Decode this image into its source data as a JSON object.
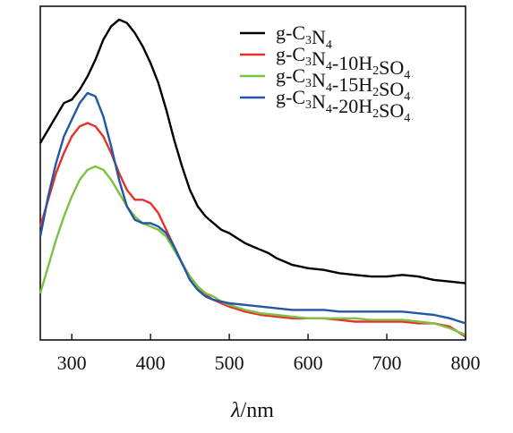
{
  "chart_data": {
    "type": "line",
    "xlabel": "λ/nm",
    "xlim": [
      260,
      800
    ],
    "ylim": [
      0,
      100
    ],
    "x_ticks": [
      "300",
      "400",
      "500",
      "600",
      "700",
      "800"
    ],
    "legend_position": "top-right",
    "series": [
      {
        "name": "g-C3N4",
        "color": "#000000",
        "points": [
          [
            260,
            59
          ],
          [
            270,
            63
          ],
          [
            280,
            67
          ],
          [
            290,
            71
          ],
          [
            300,
            72
          ],
          [
            310,
            75
          ],
          [
            320,
            79
          ],
          [
            330,
            84
          ],
          [
            340,
            90
          ],
          [
            350,
            94
          ],
          [
            360,
            96
          ],
          [
            370,
            95
          ],
          [
            380,
            92
          ],
          [
            390,
            88
          ],
          [
            400,
            83
          ],
          [
            410,
            77
          ],
          [
            420,
            69
          ],
          [
            430,
            60
          ],
          [
            440,
            52
          ],
          [
            450,
            45
          ],
          [
            460,
            40
          ],
          [
            470,
            37
          ],
          [
            480,
            35
          ],
          [
            490,
            33
          ],
          [
            500,
            32
          ],
          [
            510,
            30.5
          ],
          [
            520,
            29
          ],
          [
            530,
            28
          ],
          [
            540,
            27
          ],
          [
            550,
            26
          ],
          [
            560,
            24.5
          ],
          [
            570,
            23.5
          ],
          [
            580,
            22.5
          ],
          [
            590,
            22
          ],
          [
            600,
            21.5
          ],
          [
            620,
            21
          ],
          [
            640,
            20
          ],
          [
            660,
            19.5
          ],
          [
            680,
            19
          ],
          [
            700,
            19
          ],
          [
            720,
            19.5
          ],
          [
            740,
            19
          ],
          [
            760,
            18
          ],
          [
            780,
            17.5
          ],
          [
            800,
            17
          ]
        ]
      },
      {
        "name": "g-C3N4-10H2SO4",
        "color": "#e8302a",
        "points": [
          [
            260,
            34
          ],
          [
            270,
            42
          ],
          [
            280,
            50
          ],
          [
            290,
            56
          ],
          [
            300,
            61
          ],
          [
            310,
            64
          ],
          [
            320,
            65
          ],
          [
            330,
            64
          ],
          [
            340,
            61
          ],
          [
            350,
            56
          ],
          [
            360,
            50
          ],
          [
            370,
            45
          ],
          [
            380,
            42
          ],
          [
            390,
            42
          ],
          [
            400,
            41
          ],
          [
            410,
            38
          ],
          [
            420,
            33
          ],
          [
            430,
            28
          ],
          [
            440,
            23
          ],
          [
            450,
            19
          ],
          [
            460,
            16
          ],
          [
            470,
            13.5
          ],
          [
            480,
            12
          ],
          [
            490,
            11
          ],
          [
            500,
            10
          ],
          [
            520,
            8.5
          ],
          [
            540,
            7.5
          ],
          [
            560,
            7
          ],
          [
            580,
            6.5
          ],
          [
            600,
            6.5
          ],
          [
            620,
            6.5
          ],
          [
            640,
            6
          ],
          [
            660,
            5.5
          ],
          [
            680,
            5.5
          ],
          [
            700,
            5.5
          ],
          [
            720,
            5.5
          ],
          [
            740,
            5
          ],
          [
            760,
            5
          ],
          [
            780,
            4
          ],
          [
            800,
            1
          ]
        ]
      },
      {
        "name": "g-C3N4-15H2SO4",
        "color": "#7cc242",
        "points": [
          [
            260,
            14
          ],
          [
            270,
            22
          ],
          [
            280,
            30
          ],
          [
            290,
            37
          ],
          [
            300,
            43
          ],
          [
            310,
            48
          ],
          [
            320,
            51
          ],
          [
            330,
            52
          ],
          [
            340,
            51
          ],
          [
            350,
            48
          ],
          [
            360,
            44
          ],
          [
            370,
            40
          ],
          [
            380,
            37
          ],
          [
            390,
            35
          ],
          [
            400,
            34
          ],
          [
            410,
            33
          ],
          [
            420,
            31
          ],
          [
            430,
            27
          ],
          [
            440,
            23
          ],
          [
            450,
            19
          ],
          [
            460,
            16
          ],
          [
            470,
            14
          ],
          [
            480,
            13
          ],
          [
            490,
            11.5
          ],
          [
            500,
            10.5
          ],
          [
            520,
            9
          ],
          [
            540,
            8
          ],
          [
            560,
            7.5
          ],
          [
            580,
            7
          ],
          [
            600,
            6.5
          ],
          [
            620,
            6.5
          ],
          [
            640,
            6.5
          ],
          [
            660,
            6.5
          ],
          [
            680,
            6
          ],
          [
            700,
            6
          ],
          [
            720,
            6
          ],
          [
            740,
            5.5
          ],
          [
            760,
            5
          ],
          [
            780,
            3.5
          ],
          [
            800,
            1.5
          ]
        ]
      },
      {
        "name": "g-C3N4-20H2SO4",
        "color": "#2356a6",
        "points": [
          [
            260,
            31
          ],
          [
            270,
            43
          ],
          [
            280,
            53
          ],
          [
            290,
            61
          ],
          [
            300,
            66
          ],
          [
            310,
            71
          ],
          [
            320,
            74
          ],
          [
            330,
            73
          ],
          [
            340,
            67
          ],
          [
            350,
            58
          ],
          [
            360,
            48
          ],
          [
            370,
            40
          ],
          [
            380,
            36
          ],
          [
            390,
            35
          ],
          [
            400,
            35
          ],
          [
            410,
            34
          ],
          [
            420,
            32
          ],
          [
            430,
            28
          ],
          [
            440,
            23
          ],
          [
            450,
            18
          ],
          [
            460,
            15
          ],
          [
            470,
            13
          ],
          [
            480,
            12
          ],
          [
            490,
            11.5
          ],
          [
            500,
            11
          ],
          [
            520,
            10.5
          ],
          [
            540,
            10
          ],
          [
            560,
            9.5
          ],
          [
            580,
            9
          ],
          [
            600,
            9
          ],
          [
            620,
            9
          ],
          [
            640,
            8.5
          ],
          [
            660,
            8.5
          ],
          [
            680,
            8.5
          ],
          [
            700,
            8.5
          ],
          [
            720,
            8.5
          ],
          [
            740,
            8
          ],
          [
            760,
            7.5
          ],
          [
            780,
            6.5
          ],
          [
            800,
            5
          ]
        ]
      }
    ]
  }
}
